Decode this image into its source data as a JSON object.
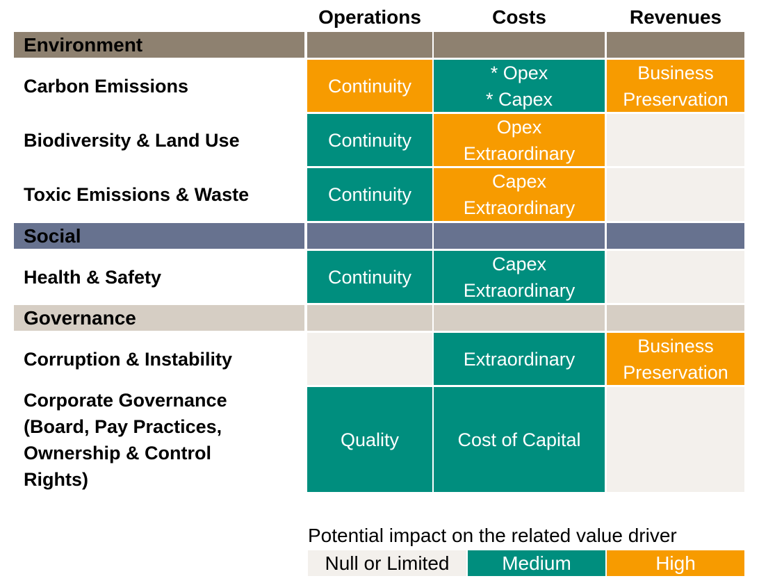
{
  "colors": {
    "environment_band": "#8e8170",
    "social_band": "#67728f",
    "governance_band": "#d6cec4",
    "null_or_limited": "#f3f0ec",
    "medium": "#008e7e",
    "high": "#f79b00"
  },
  "headers": {
    "operations": "Operations",
    "costs": "Costs",
    "revenues": "Revenues"
  },
  "sections": {
    "environment": "Environment",
    "social": "Social",
    "governance": "Governance"
  },
  "rows": [
    {
      "label": "Carbon Emissions",
      "operations": {
        "text": "Continuity",
        "level": "high"
      },
      "costs": {
        "text": "* Opex\n* Capex",
        "level": "medium"
      },
      "revenues": {
        "text": "Business\nPreservation",
        "level": "high"
      }
    },
    {
      "label": "Biodiversity & Land Use",
      "operations": {
        "text": "Continuity",
        "level": "medium"
      },
      "costs": {
        "text": "Opex\nExtraordinary",
        "level": "high"
      },
      "revenues": {
        "text": "",
        "level": "null_or_limited"
      }
    },
    {
      "label": "Toxic Emissions & Waste",
      "operations": {
        "text": "Continuity",
        "level": "medium"
      },
      "costs": {
        "text": "Capex\nExtraordinary",
        "level": "high"
      },
      "revenues": {
        "text": "",
        "level": "null_or_limited"
      }
    },
    {
      "label": "Health & Safety",
      "operations": {
        "text": "Continuity",
        "level": "medium"
      },
      "costs": {
        "text": "Capex\nExtraordinary",
        "level": "medium"
      },
      "revenues": {
        "text": "",
        "level": "null_or_limited"
      }
    },
    {
      "label": "Corruption & Instability",
      "operations": {
        "text": "",
        "level": "null_or_limited"
      },
      "costs": {
        "text": "Extraordinary",
        "level": "medium"
      },
      "revenues": {
        "text": "Business\nPreservation",
        "level": "high"
      }
    },
    {
      "label": "Corporate Governance\n(Board, Pay Practices,\nOwnership & Control\nRights)",
      "operations": {
        "text": "Quality",
        "level": "medium"
      },
      "costs": {
        "text": "Cost of Capital",
        "level": "medium"
      },
      "revenues": {
        "text": "",
        "level": "null_or_limited"
      }
    }
  ],
  "legend": {
    "title": "Potential impact on the related value driver",
    "null_or_limited": "Null or Limited",
    "medium": "Medium",
    "high": "High"
  }
}
